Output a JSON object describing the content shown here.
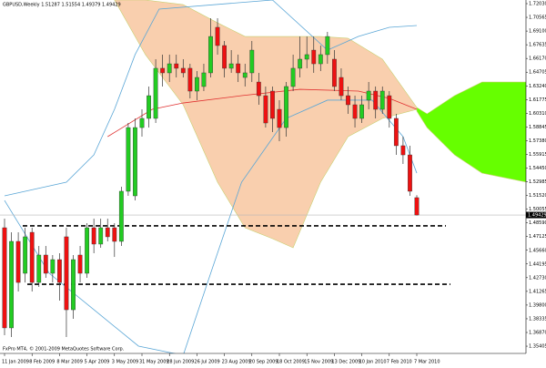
{
  "chart_data": {
    "type": "candlestick",
    "title": "GBPUSD,Weekly 1.51287 1.51554 1.49379 1.49429",
    "footer": "FxPro MT4, © 2001-2009 MetaQuotes Software Corp.",
    "categories": [
      "11 Jan 2009",
      null,
      null,
      null,
      "8 Feb 2009",
      null,
      null,
      null,
      "8 Mar 2009",
      null,
      null,
      null,
      "5 Apr 2009",
      null,
      null,
      null,
      "3 May 2009",
      null,
      null,
      null,
      "31 May 2009",
      null,
      null,
      null,
      "28 Jun 2009",
      null,
      null,
      null,
      "26 Jul 2009",
      null,
      null,
      null,
      "23 Aug 2009",
      null,
      null,
      null,
      "20 Sep 2009",
      null,
      null,
      null,
      "18 Oct 2009",
      null,
      null,
      null,
      "15 Nov 2009",
      null,
      null,
      null,
      "13 Dec 2009",
      null,
      null,
      null,
      "10 Jan 2010",
      null,
      null,
      null,
      "7 Feb 2010",
      null,
      null,
      null,
      "7 Mar 2010"
    ],
    "open": [
      1.4807,
      1.3736,
      1.4661,
      1.432,
      1.4758,
      1.4222,
      1.4515,
      1.432,
      1.4466,
      1.471,
      1.393,
      1.4515,
      1.432,
      1.4807,
      1.4632,
      1.4807,
      1.4807,
      1.4661,
      1.5197,
      1.5148,
      1.5878,
      1.5976,
      1.5976,
      1.6512,
      1.6463,
      1.656,
      1.6512,
      1.6512,
      1.6268,
      1.6317,
      1.6463,
      1.695,
      1.6755,
      1.6512,
      1.656,
      1.6414,
      1.6463,
      1.6365,
      1.6219,
      1.6268,
      1.6073,
      1.5878,
      1.6317,
      1.6512,
      1.6609,
      1.6706,
      1.656,
      1.6658,
      1.6609,
      1.6414,
      1.6219,
      1.6122,
      1.5976,
      1.6171,
      1.6268,
      1.6073,
      1.6219,
      1.5976,
      1.5684,
      1.5586,
      1.51287
    ],
    "high": [
      1.4904,
      1.4758,
      1.4758,
      1.4807,
      1.4807,
      1.4612,
      1.4612,
      1.4515,
      1.4534,
      1.4807,
      1.4515,
      1.4612,
      1.4856,
      1.4904,
      1.4904,
      1.4904,
      1.4856,
      1.5245,
      1.5927,
      1.5976,
      1.6073,
      1.6317,
      1.6609,
      1.6658,
      1.6658,
      1.6658,
      1.6609,
      1.656,
      1.6482,
      1.656,
      1.7047,
      1.7047,
      1.6804,
      1.6706,
      1.6658,
      1.656,
      1.6804,
      1.6463,
      1.6317,
      1.6317,
      1.6171,
      1.6365,
      1.6658,
      1.6852,
      1.6852,
      1.6852,
      1.6755,
      1.6901,
      1.6706,
      1.6512,
      1.6317,
      1.6219,
      1.6219,
      1.6365,
      1.6317,
      1.6317,
      1.6268,
      1.6025,
      1.5781,
      1.5684,
      1.51554
    ],
    "low": [
      1.3658,
      1.3638,
      1.4125,
      1.4222,
      1.4125,
      1.4174,
      1.4271,
      1.4222,
      1.4028,
      1.3638,
      1.3833,
      1.4222,
      1.4271,
      1.4534,
      1.4593,
      1.4661,
      1.4495,
      1.4612,
      1.5148,
      1.5099,
      1.5781,
      1.5878,
      1.5927,
      1.6317,
      1.6365,
      1.6414,
      1.6414,
      1.619,
      1.6171,
      1.6268,
      1.6414,
      1.6658,
      1.6414,
      1.6463,
      1.6365,
      1.6317,
      1.6365,
      1.6122,
      1.5878,
      1.583,
      1.5732,
      1.5781,
      1.6268,
      1.6414,
      1.6512,
      1.6463,
      1.6482,
      1.656,
      1.6268,
      1.6171,
      1.6025,
      1.5878,
      1.5927,
      1.6073,
      1.5976,
      1.6025,
      1.5878,
      1.5586,
      1.5489,
      1.5148,
      1.49379
    ],
    "close": [
      1.3736,
      1.4661,
      1.4222,
      1.471,
      1.4222,
      1.4515,
      1.432,
      1.4466,
      1.4222,
      1.393,
      1.4466,
      1.432,
      1.4807,
      1.4632,
      1.4807,
      1.471,
      1.4661,
      1.5197,
      1.5878,
      1.5878,
      1.5976,
      1.6219,
      1.6512,
      1.6463,
      1.656,
      1.6512,
      1.6463,
      1.6268,
      1.6414,
      1.6463,
      1.6852,
      1.6755,
      1.6512,
      1.656,
      1.6463,
      1.6463,
      1.6706,
      1.6219,
      1.5927,
      1.5976,
      1.5878,
      1.6317,
      1.6512,
      1.6609,
      1.6658,
      1.656,
      1.6658,
      1.6852,
      1.6317,
      1.6219,
      1.6122,
      1.5976,
      1.6122,
      1.6268,
      1.6073,
      1.6268,
      1.5976,
      1.5684,
      1.5586,
      1.5197,
      1.49429
    ],
    "up_color": "#22cc22",
    "down_color": "#ee1111",
    "ylim": [
      1.3463,
      1.7242
    ],
    "yticks": [
      {
        "value": 1.7203,
        "label": "1.72030"
      },
      1.70565,
      {
        "value": 1.691,
        "label": "1.69100"
      },
      1.67635,
      {
        "value": 1.6617,
        "label": "1.66170"
      },
      1.64705,
      {
        "value": 1.6324,
        "label": "1.63240"
      },
      1.61775,
      {
        "value": 1.6031,
        "label": "1.60310"
      },
      1.58845,
      {
        "value": 1.5738,
        "label": "1.57380"
      },
      1.55915,
      {
        "value": 1.5445,
        "label": "1.54450"
      },
      1.52985,
      {
        "value": 1.5152,
        "label": "1.51520"
      },
      1.50055,
      {
        "value": 1.4859,
        "label": "1.48590"
      },
      1.47125,
      {
        "value": 1.4566,
        "label": "1.45660"
      },
      1.44195,
      {
        "value": 1.4273,
        "label": "1.42730"
      },
      1.41265,
      {
        "value": 1.398,
        "label": "1.39800"
      },
      1.38335,
      {
        "value": 1.3687,
        "label": "1.36870"
      },
      1.35405
    ],
    "current_price": 1.49429,
    "price_line_color": "#b8b8b8",
    "clouds": [
      {
        "color": "#f9cfae",
        "x": [
          16,
          20.5,
          26,
          31,
          35,
          39,
          42,
          46,
          50,
          55,
          60
        ],
        "upper": [
          1.7242,
          1.7242,
          1.7193,
          1.6998,
          1.6852,
          1.6852,
          1.6852,
          1.6852,
          1.6833,
          1.6609,
          1.6093
        ],
        "lower": [
          1.7242,
          1.6658,
          1.6122,
          1.5294,
          1.4807,
          1.469,
          1.4593,
          1.5294,
          1.5781,
          1.5976,
          1.6073
        ]
      },
      {
        "color": "#66ff00",
        "x": [
          60,
          61.5,
          65.5,
          69.5,
          76
        ],
        "upper": [
          1.6093,
          1.6025,
          1.6219,
          1.6365,
          1.6365
        ],
        "lower": [
          1.6054,
          1.5878,
          1.5586,
          1.5391,
          1.5294
        ]
      }
    ],
    "lines": [
      {
        "color": "#5aa6d6",
        "x": [
          0,
          9,
          13,
          16,
          19,
          22.5,
          39,
          47,
          51.5,
          56,
          60
        ],
        "values": [
          1.5148,
          1.5294,
          1.5586,
          1.6073,
          1.6658,
          1.7145,
          1.7242,
          1.6706,
          1.6852,
          1.695,
          1.6969
        ]
      },
      {
        "color": "#5aa6d6",
        "x": [
          0,
          6.5,
          13,
          19.5,
          26,
          30,
          34.5,
          41,
          47,
          53.5,
          58,
          60
        ],
        "values": [
          1.5099,
          1.432,
          1.3931,
          1.3541,
          1.3443,
          1.432,
          1.5294,
          1.5976,
          1.6171,
          1.6171,
          1.5781,
          1.5391
        ]
      },
      {
        "color": "#e03030",
        "x": [
          15,
          21.5,
          26,
          34.5,
          43,
          51.5,
          56,
          60
        ],
        "values": [
          1.5781,
          1.6073,
          1.6141,
          1.6219,
          1.6287,
          1.6268,
          1.619,
          1.6073
        ]
      }
    ],
    "hlines": [
      {
        "value": 1.4827
      },
      {
        "value": 1.4203
      }
    ]
  }
}
